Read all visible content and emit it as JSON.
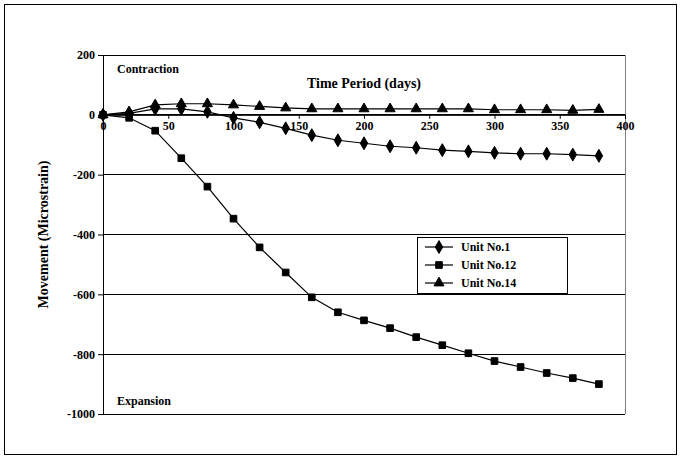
{
  "chart_data": {
    "type": "line",
    "x_label": "Time Period (days)",
    "y_label": "Movement (Microstrain)",
    "annotations": [
      "Contraction",
      "Expansion"
    ],
    "x": [
      0,
      20,
      40,
      60,
      80,
      100,
      120,
      140,
      160,
      180,
      200,
      220,
      240,
      260,
      280,
      300,
      320,
      340,
      360,
      380
    ],
    "series": [
      {
        "name": "Unit No.1",
        "color": "#000000",
        "marker": "diamond",
        "values": [
          0,
          5,
          20,
          20,
          10,
          -10,
          -25,
          -45,
          -68,
          -85,
          -95,
          -105,
          -110,
          -118,
          -122,
          -127,
          -130,
          -130,
          -133,
          -137
        ]
      },
      {
        "name": "Unit No.12",
        "color": "#000000",
        "marker": "square",
        "values": [
          0,
          -10,
          -53,
          -145,
          -240,
          -347,
          -443,
          -527,
          -610,
          -660,
          -687,
          -713,
          -743,
          -770,
          -797,
          -823,
          -843,
          -863,
          -880,
          -900
        ]
      },
      {
        "name": "Unit No.14",
        "color": "#000000",
        "marker": "triangle",
        "values": [
          0,
          10,
          33,
          37,
          37,
          33,
          28,
          23,
          20,
          20,
          20,
          20,
          20,
          20,
          20,
          17,
          17,
          17,
          15,
          18
        ]
      }
    ],
    "xlim": [
      0,
      400
    ],
    "xticks": [
      0,
      50,
      100,
      150,
      200,
      250,
      300,
      350,
      400
    ],
    "ylim": [
      -1000,
      200
    ],
    "yticks": [
      -1000,
      -800,
      -600,
      -400,
      -200,
      0,
      200
    ],
    "grid": true,
    "legend": "right"
  }
}
